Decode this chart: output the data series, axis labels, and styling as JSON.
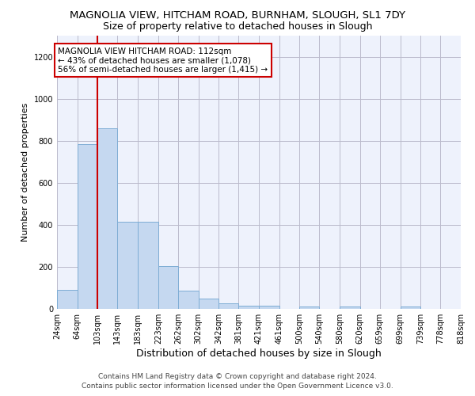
{
  "title1": "MAGNOLIA VIEW, HITCHAM ROAD, BURNHAM, SLOUGH, SL1 7DY",
  "title2": "Size of property relative to detached houses in Slough",
  "xlabel": "Distribution of detached houses by size in Slough",
  "ylabel": "Number of detached properties",
  "footer1": "Contains HM Land Registry data © Crown copyright and database right 2024.",
  "footer2": "Contains public sector information licensed under the Open Government Licence v3.0.",
  "annotation_line1": "MAGNOLIA VIEW HITCHAM ROAD: 112sqm",
  "annotation_line2": "← 43% of detached houses are smaller (1,078)",
  "annotation_line3": "56% of semi-detached houses are larger (1,415) →",
  "bar_left_edges": [
    24,
    64,
    103,
    143,
    183,
    223,
    262,
    302,
    342,
    381,
    421,
    461,
    500,
    540,
    580,
    620,
    659,
    699,
    739,
    778
  ],
  "bar_widths": [
    40,
    39,
    40,
    40,
    40,
    39,
    40,
    40,
    39,
    40,
    40,
    39,
    40,
    40,
    40,
    39,
    40,
    40,
    39,
    40
  ],
  "bar_heights": [
    90,
    785,
    860,
    415,
    415,
    205,
    85,
    50,
    25,
    15,
    15,
    0,
    10,
    0,
    10,
    0,
    0,
    10,
    0,
    0
  ],
  "bar_color": "#c5d8f0",
  "bar_edge_color": "#7eadd4",
  "red_line_x": 103,
  "red_line_color": "#cc0000",
  "ylim": [
    0,
    1300
  ],
  "yticks": [
    0,
    200,
    400,
    600,
    800,
    1000,
    1200
  ],
  "bg_color": "#eef2fc",
  "annotation_box_facecolor": "#ffffff",
  "annotation_box_edgecolor": "#cc0000",
  "grid_color": "#bbbbcc",
  "title1_fontsize": 9.5,
  "title2_fontsize": 9,
  "xlabel_fontsize": 9,
  "ylabel_fontsize": 8,
  "tick_fontsize": 7,
  "footer_fontsize": 6.5
}
